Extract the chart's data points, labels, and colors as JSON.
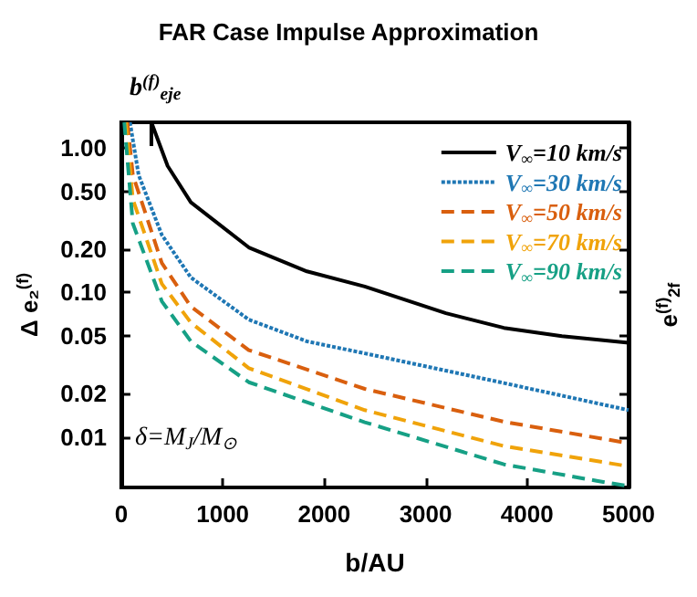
{
  "chart_data": {
    "type": "line",
    "title": "FAR Case Impulse Approximation",
    "xlabel": "b/AU",
    "ylabel": "Δ e₂$^{(f)}$",
    "y2label": "e$^{(f)}$$_{2f}$",
    "series": [
      {
        "name": "V$_{∞}$=10 km/s",
        "color": "#000000",
        "line_style": "solid",
        "x": [
          297,
          457,
          686,
          1257,
          1830,
          2400,
          3200,
          3771,
          4343,
          5000
        ],
        "values": [
          1.5,
          0.75,
          0.42,
          0.205,
          0.14,
          0.11,
          0.072,
          0.057,
          0.05,
          0.045
        ]
      },
      {
        "name": "V$_{∞}$=30 km/s",
        "color": "#1f77b4",
        "line_style": "dotted",
        "x": [
          86,
          171,
          400,
          686,
          1257,
          1830,
          2400,
          3771,
          5000
        ],
        "values": [
          1.5,
          0.65,
          0.25,
          0.127,
          0.065,
          0.046,
          0.038,
          0.0237,
          0.0154
        ]
      },
      {
        "name": "V$_{∞}$=50 km/s",
        "color": "#d95f0e",
        "line_style": "dashed",
        "x": [
          60,
          114,
          400,
          686,
          1257,
          2400,
          3771,
          5000
        ],
        "values": [
          1.5,
          0.65,
          0.16,
          0.08,
          0.04,
          0.0216,
          0.0128,
          0.0091
        ]
      },
      {
        "name": "V$_{∞}$=70 km/s",
        "color": "#f0a30a",
        "line_style": "dashed",
        "x": [
          45,
          114,
          400,
          686,
          1257,
          2400,
          3771,
          5000
        ],
        "values": [
          1.5,
          0.44,
          0.115,
          0.062,
          0.03,
          0.0154,
          0.0087,
          0.0063
        ]
      },
      {
        "name": "V$_{∞}$=90 km/s",
        "color": "#16a085",
        "line_style": "dashed",
        "x": [
          30,
          114,
          400,
          686,
          1257,
          2400,
          3771,
          4686,
          5000
        ],
        "values": [
          1.5,
          0.3,
          0.087,
          0.046,
          0.024,
          0.0127,
          0.0065,
          0.005,
          0.0046
        ]
      }
    ],
    "xlim": [
      0,
      5000
    ],
    "xticks": [
      0,
      1000,
      2000,
      3000,
      4000,
      5000
    ],
    "ylim": [
      0.0045,
      1.5
    ],
    "log": "y",
    "yticks": [
      {
        "value": 0.01,
        "label": "0.01"
      },
      {
        "value": 0.02,
        "label": "0.02"
      },
      {
        "value": 0.05,
        "label": "0.05"
      },
      {
        "value": 0.1,
        "label": "0.10"
      },
      {
        "value": 0.2,
        "label": "0.20"
      },
      {
        "value": 0.5,
        "label": "0.50"
      },
      {
        "value": 1,
        "label": "1.00"
      }
    ],
    "ref_lines": [
      {
        "axis": "x",
        "value": 297,
        "label": "b$^{(f)}$$_{eje}$",
        "color": "#000000"
      }
    ],
    "annotations": [
      "δ=M$_{J}$/M$_{⊙}$"
    ],
    "legend": "top right",
    "grid": false
  }
}
